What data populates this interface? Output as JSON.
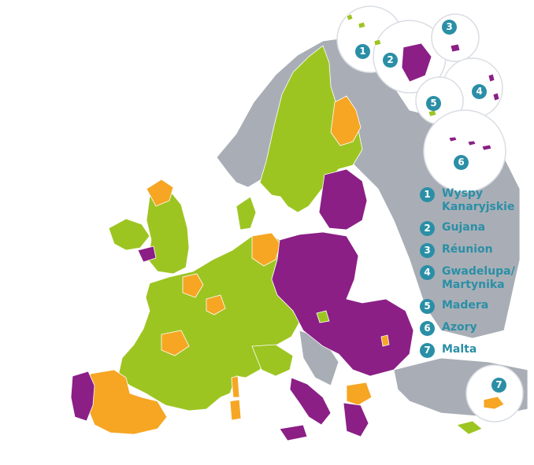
{
  "colors": {
    "category_green": "#9dc522",
    "category_orange": "#f6a623",
    "category_purple": "#8b1f86",
    "non_eu_grey": "#a9aeb6",
    "accent_teal": "#2a8fa6"
  },
  "legend": {
    "items": [
      {
        "number": "1",
        "label": "Wyspy\nKanaryjskie"
      },
      {
        "number": "2",
        "label": "Gujana"
      },
      {
        "number": "3",
        "label": "Réunion"
      },
      {
        "number": "4",
        "label": "Gwadelupa/\nMartynika"
      },
      {
        "number": "5",
        "label": "Madera"
      },
      {
        "number": "6",
        "label": "Azory"
      },
      {
        "number": "7",
        "label": "Malta"
      }
    ]
  },
  "insets": [
    {
      "number": "1"
    },
    {
      "number": "2"
    },
    {
      "number": "3"
    },
    {
      "number": "4"
    },
    {
      "number": "5"
    },
    {
      "number": "6"
    },
    {
      "number": "7"
    }
  ]
}
